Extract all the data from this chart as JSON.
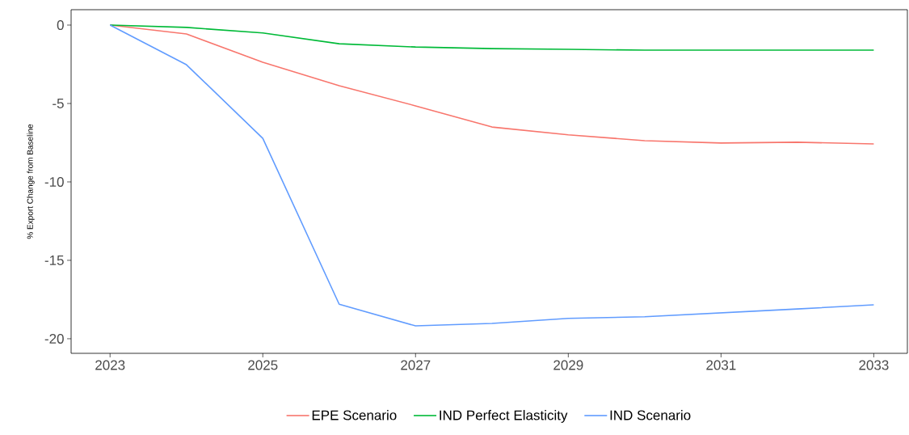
{
  "chart_data": {
    "type": "line",
    "ylabel": "% Export Change from Baseline",
    "x": [
      2023,
      2024,
      2025,
      2026,
      2027,
      2028,
      2029,
      2030,
      2031,
      2032,
      2033
    ],
    "series": [
      {
        "name": "EPE Scenario",
        "color": "#f8766d",
        "values": [
          0,
          -0.57,
          -2.37,
          -3.87,
          -5.15,
          -6.5,
          -7.0,
          -7.37,
          -7.52,
          -7.47,
          -7.58
        ]
      },
      {
        "name": "IND Perfect Elasticity",
        "color": "#00ba38",
        "values": [
          0,
          -0.15,
          -0.5,
          -1.19,
          -1.4,
          -1.5,
          -1.55,
          -1.6,
          -1.6,
          -1.6,
          -1.6
        ]
      },
      {
        "name": "IND Scenario",
        "color": "#619cff",
        "values": [
          0,
          -2.53,
          -7.22,
          -17.8,
          -19.18,
          -19.02,
          -18.7,
          -18.6,
          -18.35,
          -18.1,
          -17.84
        ]
      }
    ],
    "xlim": [
      2022.49,
      2033.44
    ],
    "ylim": [
      -20.93,
      0.98
    ],
    "xticks": [
      2023,
      2025,
      2027,
      2029,
      2031,
      2033
    ],
    "yticks": [
      -20,
      -15,
      -10,
      -5,
      0
    ],
    "grid": false,
    "legend": "bottom",
    "marker": "none",
    "line_style": "solid"
  }
}
